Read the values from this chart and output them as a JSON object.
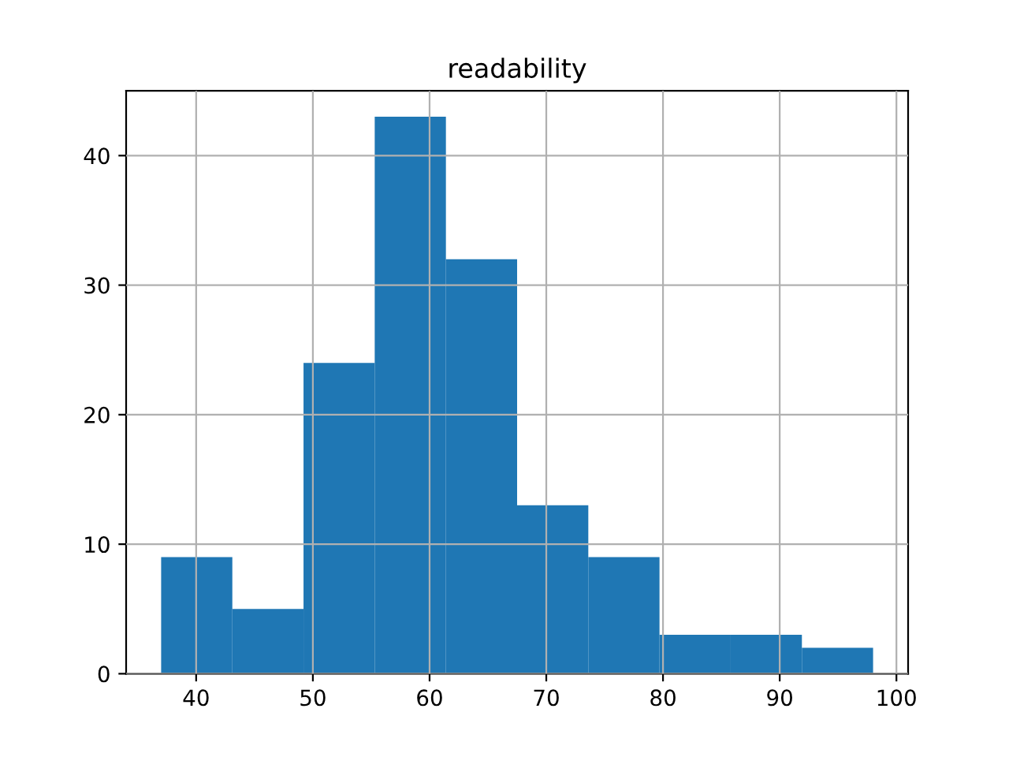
{
  "chart_data": {
    "type": "histogram",
    "title": "readability",
    "bins": [
      37,
      43.1,
      49.2,
      55.3,
      61.4,
      67.5,
      73.6,
      79.7,
      85.8,
      91.9,
      98
    ],
    "values": [
      9,
      5,
      24,
      43,
      32,
      13,
      9,
      3,
      3,
      2
    ],
    "color": "#1f77b4",
    "xlim": [
      34,
      101
    ],
    "xticks": [
      40,
      50,
      60,
      70,
      80,
      90,
      100
    ],
    "ylim": [
      0,
      45
    ],
    "yticks": [
      0,
      10,
      20,
      30,
      40
    ],
    "grid": true
  }
}
